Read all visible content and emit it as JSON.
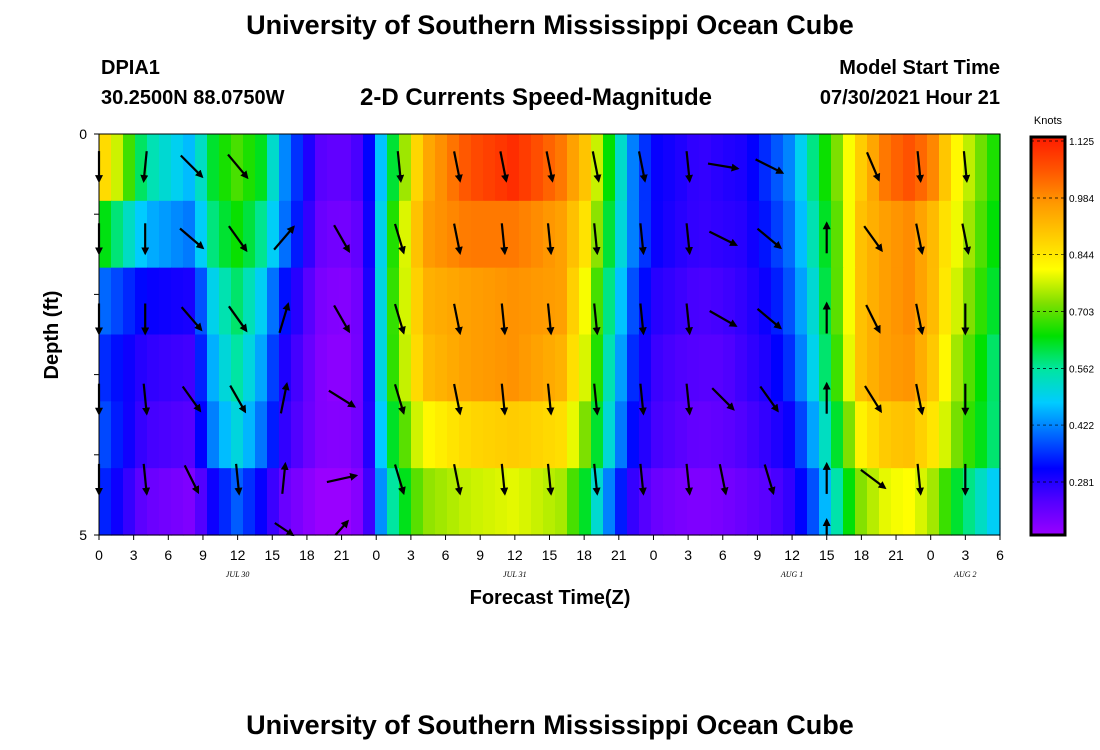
{
  "header": {
    "title": "University of Southern Mississippi Ocean Cube",
    "station_id": "DPIA1",
    "station_coords": "30.2500N  88.0750W",
    "subtitle": "2-D Currents Speed-Magnitude",
    "model_start_label": "Model Start Time",
    "model_start_value": "07/30/2021 Hour 21"
  },
  "footer": {
    "title": "University of Southern Mississippi Ocean Cube"
  },
  "chart_data": {
    "type": "heatmap",
    "title": "2-D Currents Speed-Magnitude",
    "xlabel": "Forecast Time(Z)",
    "ylabel": "Depth (ft)",
    "colorbar_label": "Knots",
    "x_tick_labels": [
      "0",
      "3",
      "6",
      "9",
      "12",
      "15",
      "18",
      "21",
      "0",
      "3",
      "6",
      "9",
      "12",
      "15",
      "18",
      "21",
      "0",
      "3",
      "6",
      "9",
      "12",
      "15",
      "18",
      "21",
      "0",
      "3",
      "6"
    ],
    "date_labels": [
      {
        "text": "JUL 30",
        "at_hour": 12
      },
      {
        "text": "JUL 31",
        "at_hour": 36
      },
      {
        "text": "AUG 1",
        "at_hour": 60
      },
      {
        "text": "AUG 2",
        "at_hour": 75
      }
    ],
    "xlim": [
      0,
      78
    ],
    "y_ticks": [
      0,
      5
    ],
    "ylim": [
      5,
      0
    ],
    "colorbar_ticks": [
      "1.125",
      "0.984",
      "0.844",
      "0.703",
      "0.562",
      "0.422",
      "0.281"
    ],
    "colorbar_range": [
      0.14,
      1.125
    ],
    "colormap_stops": [
      "#9900ff",
      "#5500ff",
      "#0000ff",
      "#0066ff",
      "#00ccff",
      "#00e6a0",
      "#00e000",
      "#80e000",
      "#ffff00",
      "#ffcc00",
      "#ff9900",
      "#ff5500",
      "#ff1a00"
    ],
    "time_hours": [
      0,
      4,
      8,
      10,
      12,
      14,
      16,
      19,
      21,
      23,
      25,
      28,
      32,
      36,
      40,
      42,
      44,
      46,
      48,
      50,
      52,
      54,
      56,
      58,
      60,
      62,
      64,
      66,
      68,
      70,
      72,
      74,
      78
    ],
    "depth_layers": [
      {
        "depth_ft": 0,
        "speed_knots": [
          0.9,
          0.55,
          0.45,
          0.62,
          0.68,
          0.62,
          0.42,
          0.22,
          0.2,
          0.25,
          0.55,
          0.92,
          1.05,
          1.1,
          1.0,
          0.9,
          0.65,
          0.42,
          0.3,
          0.28,
          0.25,
          0.27,
          0.28,
          0.35,
          0.42,
          0.58,
          0.72,
          0.88,
          1.0,
          1.05,
          1.0,
          0.82,
          0.62
        ]
      },
      {
        "depth_ft": 1,
        "speed_knots": [
          0.65,
          0.45,
          0.4,
          0.58,
          0.64,
          0.56,
          0.4,
          0.2,
          0.18,
          0.22,
          0.6,
          0.95,
          1.0,
          1.0,
          0.95,
          0.85,
          0.62,
          0.42,
          0.3,
          0.27,
          0.25,
          0.26,
          0.27,
          0.33,
          0.4,
          0.55,
          0.7,
          0.9,
          0.95,
          0.98,
          0.92,
          0.8,
          0.6
        ]
      },
      {
        "depth_ft": 2,
        "speed_knots": [
          0.4,
          0.3,
          0.28,
          0.5,
          0.58,
          0.48,
          0.32,
          0.18,
          0.16,
          0.2,
          0.62,
          0.92,
          0.95,
          0.97,
          0.95,
          0.8,
          0.58,
          0.38,
          0.27,
          0.25,
          0.23,
          0.24,
          0.26,
          0.3,
          0.38,
          0.52,
          0.7,
          0.9,
          0.95,
          0.98,
          0.92,
          0.78,
          0.58
        ]
      },
      {
        "depth_ft": 3,
        "speed_knots": [
          0.35,
          0.26,
          0.24,
          0.46,
          0.55,
          0.44,
          0.28,
          0.17,
          0.15,
          0.2,
          0.62,
          0.9,
          0.95,
          0.97,
          0.92,
          0.78,
          0.55,
          0.35,
          0.25,
          0.23,
          0.22,
          0.22,
          0.25,
          0.28,
          0.35,
          0.5,
          0.68,
          0.9,
          0.95,
          0.97,
          0.9,
          0.75,
          0.55
        ]
      },
      {
        "depth_ft": 4,
        "speed_knots": [
          0.38,
          0.24,
          0.22,
          0.42,
          0.5,
          0.4,
          0.26,
          0.17,
          0.16,
          0.2,
          0.58,
          0.8,
          0.86,
          0.88,
          0.85,
          0.72,
          0.52,
          0.32,
          0.24,
          0.22,
          0.2,
          0.21,
          0.23,
          0.26,
          0.3,
          0.45,
          0.62,
          0.82,
          0.88,
          0.9,
          0.85,
          0.72,
          0.55
        ]
      },
      {
        "depth_ft": 5,
        "speed_knots": [
          0.35,
          0.2,
          0.17,
          0.3,
          0.38,
          0.3,
          0.2,
          0.14,
          0.13,
          0.18,
          0.52,
          0.72,
          0.76,
          0.78,
          0.74,
          0.62,
          0.42,
          0.26,
          0.2,
          0.18,
          0.17,
          0.18,
          0.2,
          0.22,
          0.26,
          0.38,
          0.55,
          0.72,
          0.78,
          0.8,
          0.75,
          0.62,
          0.45
        ]
      }
    ],
    "vector_times": [
      0,
      4,
      8,
      12,
      16,
      21,
      26,
      31,
      35,
      39,
      43,
      47,
      51,
      54,
      58,
      63,
      67,
      71,
      75
    ],
    "vector_rows": [
      {
        "depth_ft": 0.4,
        "dx": [
          0.0,
          -0.1,
          0.6,
          0.5,
          null,
          null,
          0.1,
          0.2,
          0.2,
          0.2,
          0.2,
          0.2,
          0.1,
          0.6,
          0.6,
          null,
          0.3,
          0.1,
          0.1
        ],
        "dy": [
          1.0,
          1.0,
          0.6,
          0.6,
          null,
          null,
          1.0,
          1.0,
          1.0,
          1.0,
          1.0,
          1.0,
          1.0,
          0.1,
          0.3,
          null,
          0.7,
          1.0,
          1.0
        ]
      },
      {
        "depth_ft": 1.3,
        "dx": [
          0.0,
          0.0,
          0.7,
          0.5,
          0.6,
          0.4,
          0.3,
          0.2,
          0.1,
          0.1,
          0.1,
          0.1,
          0.1,
          0.6,
          0.6,
          0.0,
          0.5,
          0.2,
          0.2
        ],
        "dy": [
          1.0,
          1.0,
          0.6,
          0.7,
          -0.7,
          0.7,
          1.0,
          1.0,
          1.0,
          1.0,
          1.0,
          1.0,
          1.0,
          0.3,
          0.5,
          -1.0,
          0.7,
          1.0,
          1.0
        ]
      },
      {
        "depth_ft": 2.3,
        "dx": [
          0.0,
          0.0,
          0.6,
          0.5,
          0.3,
          0.4,
          0.3,
          0.2,
          0.1,
          0.1,
          0.1,
          0.1,
          0.1,
          0.7,
          0.6,
          0.0,
          0.4,
          0.2,
          0.0
        ],
        "dy": [
          1.0,
          1.0,
          0.7,
          0.7,
          -1.0,
          0.7,
          1.0,
          1.0,
          1.0,
          1.0,
          1.0,
          1.0,
          1.0,
          0.4,
          0.5,
          -1.0,
          0.8,
          1.0,
          1.0
        ]
      },
      {
        "depth_ft": 3.3,
        "dx": [
          0.0,
          0.1,
          0.5,
          0.4,
          0.2,
          0.8,
          0.3,
          0.2,
          0.1,
          0.1,
          0.1,
          0.1,
          0.1,
          0.6,
          0.5,
          0.0,
          0.5,
          0.2,
          0.0
        ],
        "dy": [
          1.0,
          1.0,
          0.7,
          0.7,
          -1.0,
          0.5,
          1.0,
          1.0,
          1.0,
          1.0,
          1.0,
          1.0,
          1.0,
          0.6,
          0.7,
          -1.0,
          0.8,
          1.0,
          1.0
        ]
      },
      {
        "depth_ft": 4.3,
        "dx": [
          0.0,
          0.1,
          0.4,
          0.1,
          0.1,
          0.9,
          0.3,
          0.2,
          0.1,
          0.1,
          0.1,
          0.1,
          0.1,
          0.2,
          0.3,
          0.0,
          0.8,
          0.1,
          0.0
        ],
        "dy": [
          1.0,
          1.0,
          0.8,
          1.0,
          -1.0,
          -0.2,
          1.0,
          1.0,
          1.0,
          1.0,
          1.0,
          1.0,
          1.0,
          1.0,
          1.0,
          -1.0,
          0.6,
          1.0,
          1.0
        ]
      },
      {
        "depth_ft": 5.0,
        "dx": [
          null,
          null,
          null,
          null,
          0.6,
          0.4,
          null,
          null,
          null,
          null,
          null,
          null,
          null,
          null,
          null,
          0.0,
          null,
          null,
          null
        ],
        "dy": [
          null,
          null,
          null,
          null,
          0.8,
          -0.9,
          null,
          null,
          null,
          null,
          null,
          null,
          null,
          null,
          null,
          -1.0,
          null,
          null,
          null
        ]
      }
    ]
  }
}
